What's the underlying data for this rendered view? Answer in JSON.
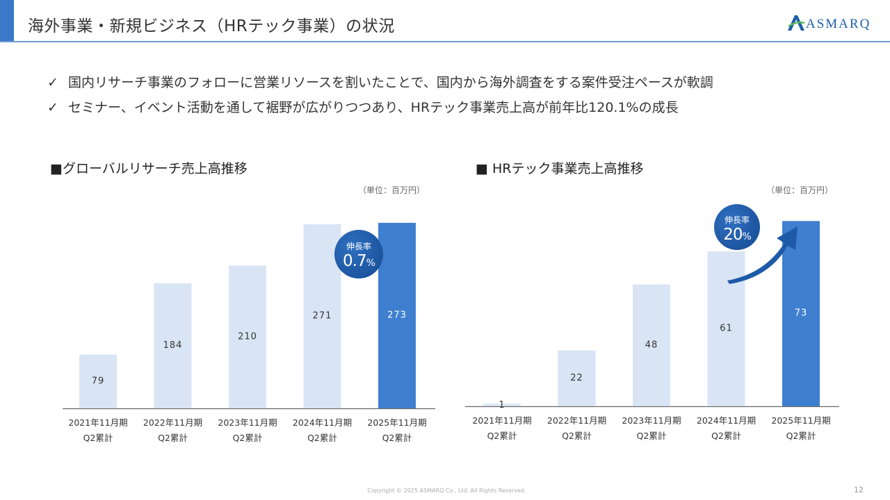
{
  "header": {
    "title": "海外事業・新規ビジネス（HRテック事業）の状況",
    "logo_text": "ASMARQ",
    "accent_color": "#3b78c8"
  },
  "bullets": [
    {
      "mark": "✓",
      "text": "国内リサーチ事業のフォローに営業リソースを割いたことで、国内から海外調査をする案件受注ペースが軟調"
    },
    {
      "mark": "✓",
      "text": "セミナー、イベント活動を通して裾野が広がりつつあり、HRテック事業売上高が前年比120.1%の成長"
    }
  ],
  "chart_data": [
    {
      "type": "bar",
      "title": "■グローバルリサーチ売上高推移",
      "unit": "（単位：百万円）",
      "categories": [
        {
          "period": "2021年11月期",
          "sub": "Q2累計"
        },
        {
          "period": "2022年11月期",
          "sub": "Q2累計"
        },
        {
          "period": "2023年11月期",
          "sub": "Q2累計"
        },
        {
          "period": "2024年11月期",
          "sub": "Q2累計"
        },
        {
          "period": "2025年11月期",
          "sub": "Q2累計"
        }
      ],
      "values": [
        79,
        184,
        210,
        271,
        273
      ],
      "data_labels": [
        "79",
        "184",
        "210",
        "271",
        "273"
      ],
      "ylim": [
        0,
        280
      ],
      "highlight_index": 4,
      "colors": {
        "normal": "#d9e5f4",
        "highlight": "#3f7fd0"
      },
      "callout": {
        "label": "伸長率",
        "value": "0.7",
        "suffix": "%"
      }
    },
    {
      "type": "bar",
      "title": "■ HRテック事業売上高推移",
      "unit": "（単位：百万円）",
      "categories": [
        {
          "period": "2021年11月期",
          "sub": "Q2累計"
        },
        {
          "period": "2022年11月期",
          "sub": "Q2累計"
        },
        {
          "period": "2023年11月期",
          "sub": "Q2累計"
        },
        {
          "period": "2024年11月期",
          "sub": "Q2累計"
        },
        {
          "period": "2025年11月期",
          "sub": "Q2累計"
        }
      ],
      "values": [
        1,
        22,
        48,
        61,
        73
      ],
      "data_labels": [
        "1",
        "22",
        "48",
        "61",
        "73"
      ],
      "ylim": [
        0,
        75
      ],
      "highlight_index": 4,
      "colors": {
        "normal": "#d9e5f4",
        "highlight": "#3f7fd0"
      },
      "callout": {
        "label": "伸長率",
        "value": "20",
        "suffix": "%"
      }
    }
  ],
  "footer": {
    "copyright": "Copyright © 2025 ASMARQ Co., Ltd. All Rights Reserved.",
    "page": "12"
  }
}
